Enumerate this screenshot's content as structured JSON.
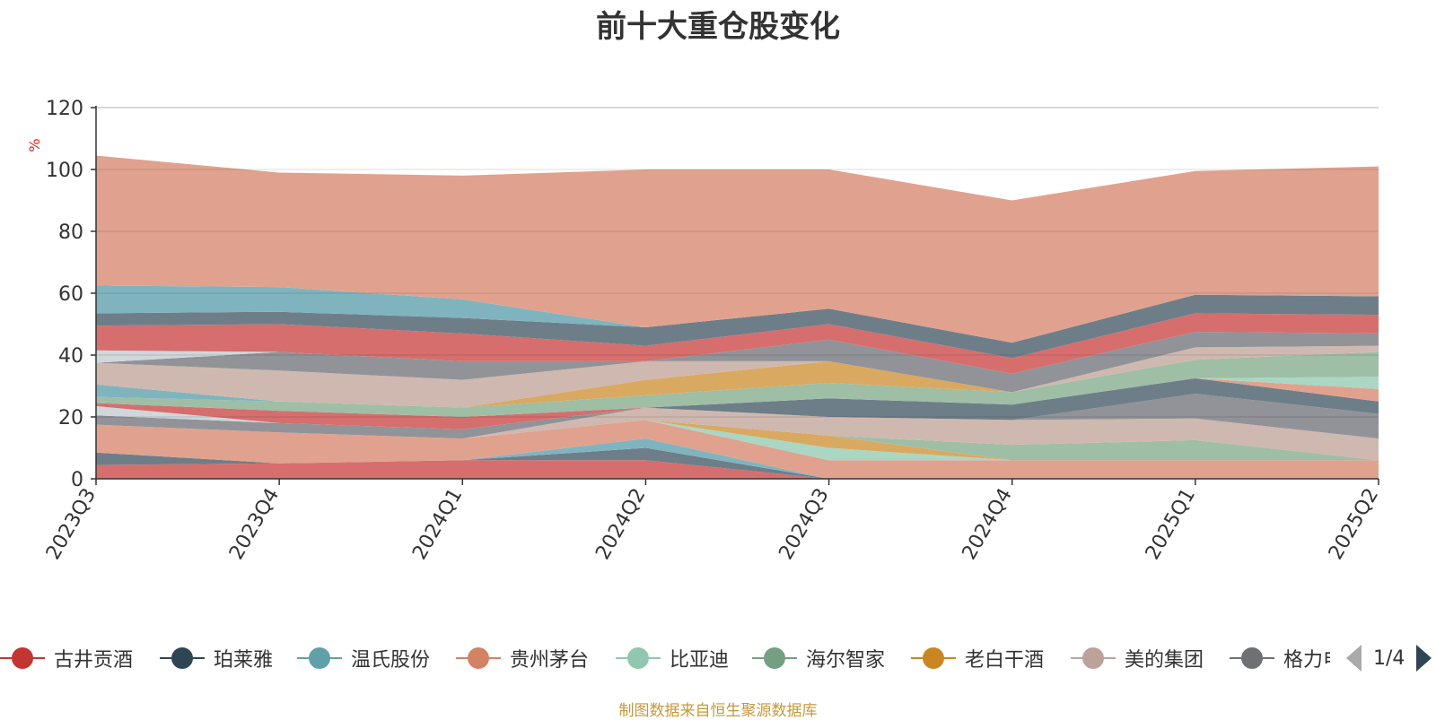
{
  "chart_data": {
    "type": "area",
    "title": "前十大重仓股变化",
    "ylabel": "%",
    "xlabel": "",
    "ylim": [
      0,
      120
    ],
    "yticks": [
      0,
      20,
      40,
      60,
      80,
      100,
      120
    ],
    "grid": true,
    "stacked": true,
    "categories": [
      "2023Q3",
      "2023Q4",
      "2024Q1",
      "2024Q2",
      "2024Q3",
      "2024Q4",
      "2025Q1",
      "2025Q2"
    ],
    "layers": [
      {
        "color": "#d66e6e",
        "values": [
          4.5,
          5,
          6,
          6,
          0,
          0,
          0,
          0
        ]
      },
      {
        "color": "#6e7e89",
        "values": [
          4,
          0,
          0,
          4,
          0,
          0,
          0,
          0
        ]
      },
      {
        "color": "#7fb4bf",
        "values": [
          0,
          0,
          0,
          3,
          0,
          0,
          0,
          0
        ]
      },
      {
        "color": "#e0a28e",
        "values": [
          9,
          10,
          7,
          6,
          6,
          6,
          6,
          6
        ]
      },
      {
        "color": "#a9d7c4",
        "values": [
          0,
          0,
          0,
          0,
          4,
          0,
          0,
          0
        ]
      },
      {
        "color": "#d9a962",
        "values": [
          0,
          0,
          0,
          0,
          4,
          0,
          0,
          0
        ]
      },
      {
        "color": "#9ebea6",
        "values": [
          0,
          0,
          0,
          0,
          0,
          5,
          6.5,
          0
        ]
      },
      {
        "color": "#cfb8b0",
        "values": [
          0,
          0,
          0,
          4,
          6,
          8,
          7,
          7
        ]
      },
      {
        "color": "#919398",
        "values": [
          0,
          0,
          0,
          0,
          0,
          0,
          8,
          8
        ]
      },
      {
        "color": "#6e7e89",
        "values": [
          0,
          0,
          0,
          0,
          6,
          5,
          5,
          4
        ]
      },
      {
        "color": "#e0a28e",
        "values": [
          0,
          0,
          0,
          0,
          0,
          0,
          0,
          4
        ]
      },
      {
        "color": "#a9d7c4",
        "values": [
          0,
          0,
          0,
          0,
          0,
          0,
          0,
          4
        ]
      },
      {
        "color": "#919398",
        "values": [
          3,
          3,
          3,
          0,
          0,
          0,
          0,
          0
        ]
      },
      {
        "color": "#d0d6da",
        "values": [
          3,
          0,
          0,
          0,
          0,
          0,
          0,
          0
        ]
      },
      {
        "color": "#d66e6e",
        "values": [
          1,
          4,
          4,
          0,
          0,
          0,
          0,
          0
        ]
      },
      {
        "color": "#9ebea6",
        "values": [
          2,
          3,
          3,
          4,
          5,
          4,
          6,
          8
        ]
      },
      {
        "color": "#7fb4bf",
        "values": [
          4,
          0,
          0,
          0,
          0,
          0,
          0,
          0
        ]
      },
      {
        "color": "#d9a962",
        "values": [
          0,
          0,
          0,
          5,
          7,
          0,
          0,
          0
        ]
      },
      {
        "color": "#cfb8b0",
        "values": [
          7,
          10,
          9,
          6,
          0,
          0,
          4,
          2
        ]
      },
      {
        "color": "#919398",
        "values": [
          0,
          6,
          6,
          0,
          7,
          6,
          5,
          4
        ]
      },
      {
        "color": "#d0d6da",
        "values": [
          4,
          0,
          0,
          0,
          0,
          0,
          0,
          0
        ]
      },
      {
        "color": "#d66e6e",
        "values": [
          8,
          9,
          9,
          5,
          5,
          5,
          6,
          6
        ]
      },
      {
        "color": "#6e7e89",
        "values": [
          4,
          4,
          5,
          6,
          5,
          5,
          6,
          6
        ]
      },
      {
        "color": "#7fb4bf",
        "values": [
          9,
          8,
          6,
          0,
          0,
          0,
          0,
          0
        ]
      },
      {
        "color": "#e0a28e",
        "values": [
          42,
          37,
          40,
          51,
          45,
          46,
          40,
          42
        ]
      }
    ],
    "legend": {
      "position": "bottom",
      "page": "1/4",
      "items": [
        {
          "name": "古井贡酒",
          "color": "#c23531"
        },
        {
          "name": "珀莱雅",
          "color": "#2f4554"
        },
        {
          "name": "温氏股份",
          "color": "#61a0a8"
        },
        {
          "name": "贵州茅台",
          "color": "#d48265"
        },
        {
          "name": "比亚迪",
          "color": "#91c7ae"
        },
        {
          "name": "海尔智家",
          "color": "#749f83"
        },
        {
          "name": "老白干酒",
          "color": "#ca8622"
        },
        {
          "name": "美的集团",
          "color": "#bda29a"
        },
        {
          "name": "格力电器",
          "color": "#6e7074"
        }
      ]
    }
  },
  "footer": {
    "source": "制图数据来自恒生聚源数据库"
  }
}
